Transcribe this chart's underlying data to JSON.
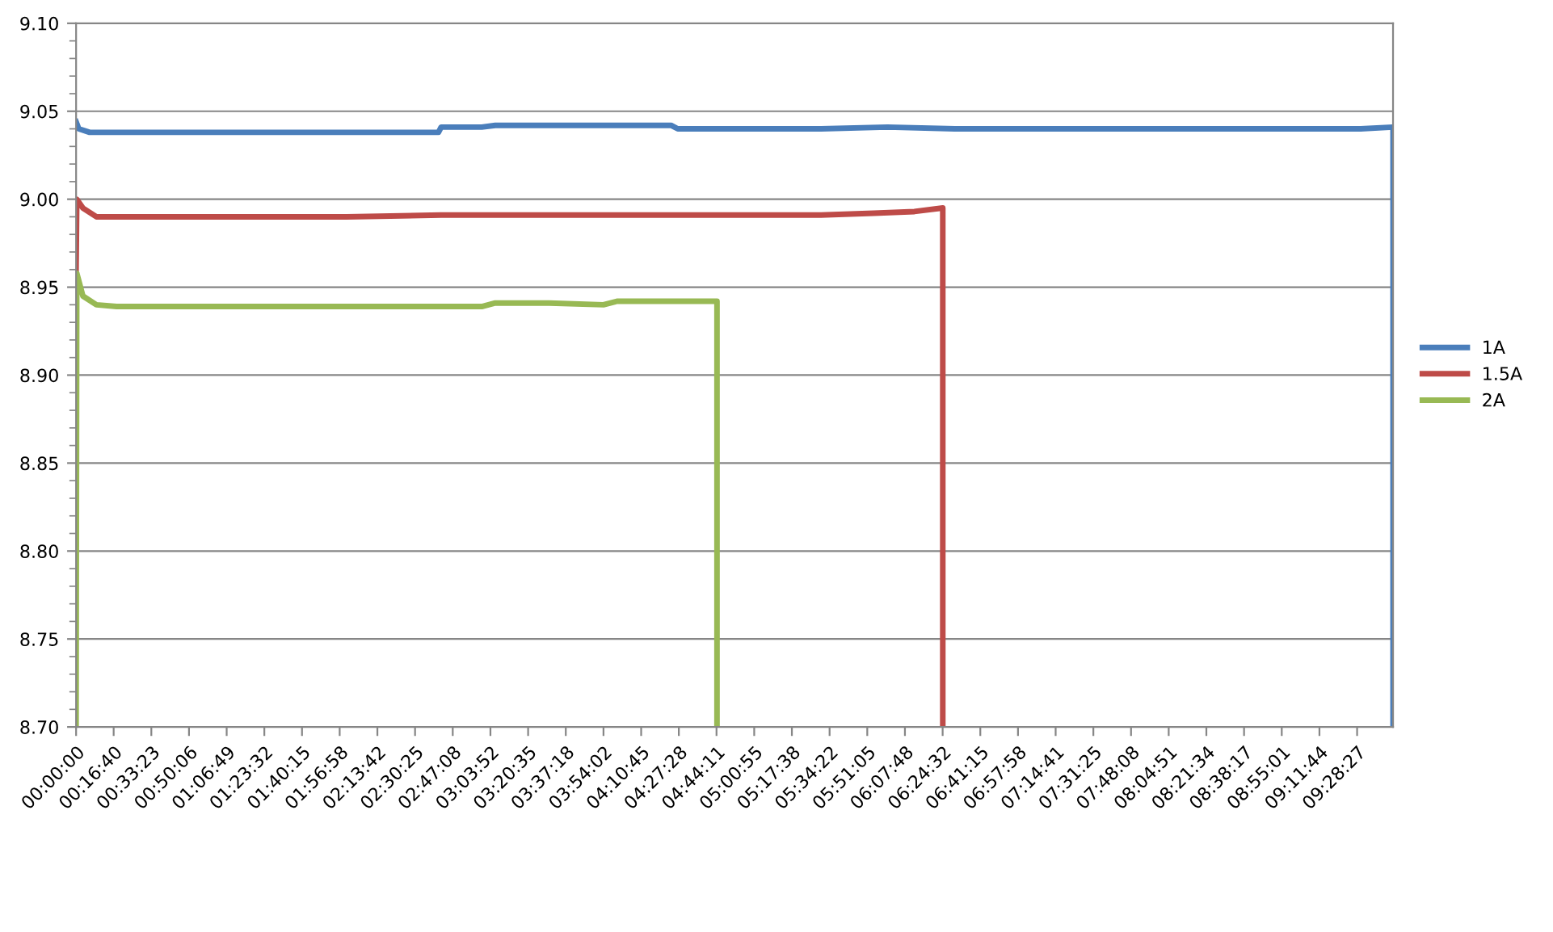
{
  "chart_data": {
    "type": "line",
    "xlim": [
      0,
      9.74
    ],
    "ylim": [
      8.7,
      9.1
    ],
    "yticks": [
      {
        "value": 8.7,
        "label": "8.70"
      },
      {
        "value": 8.75,
        "label": "8.75"
      },
      {
        "value": 8.8,
        "label": "8.80"
      },
      {
        "value": 8.85,
        "label": "8.85"
      },
      {
        "value": 8.9,
        "label": "8.90"
      },
      {
        "value": 8.95,
        "label": "8.95"
      },
      {
        "value": 9.0,
        "label": "9.00"
      },
      {
        "value": 9.05,
        "label": "9.05"
      },
      {
        "value": 9.1,
        "label": "9.10"
      }
    ],
    "xticks": [
      {
        "value": 0,
        "label": "00:00:00"
      },
      {
        "value": 0.2778,
        "label": "00:16:40"
      },
      {
        "value": 0.5564,
        "label": "00:33:23"
      },
      {
        "value": 0.835,
        "label": "00:50:06"
      },
      {
        "value": 1.1136,
        "label": "01:06:49"
      },
      {
        "value": 1.3922,
        "label": "01:23:32"
      },
      {
        "value": 1.6708,
        "label": "01:40:15"
      },
      {
        "value": 1.9494,
        "label": "01:56:58"
      },
      {
        "value": 2.2283,
        "label": "02:13:42"
      },
      {
        "value": 2.5069,
        "label": "02:30:25"
      },
      {
        "value": 2.7856,
        "label": "02:47:08"
      },
      {
        "value": 3.0644,
        "label": "03:03:52"
      },
      {
        "value": 3.3431,
        "label": "03:20:35"
      },
      {
        "value": 3.6217,
        "label": "03:37:18"
      },
      {
        "value": 3.9006,
        "label": "03:54:02"
      },
      {
        "value": 4.1792,
        "label": "04:10:45"
      },
      {
        "value": 4.4578,
        "label": "04:27:28"
      },
      {
        "value": 4.7364,
        "label": "04:44:11"
      },
      {
        "value": 5.0153,
        "label": "05:00:55"
      },
      {
        "value": 5.2939,
        "label": "05:17:38"
      },
      {
        "value": 5.5728,
        "label": "05:34:22"
      },
      {
        "value": 5.8514,
        "label": "05:51:05"
      },
      {
        "value": 6.13,
        "label": "06:07:48"
      },
      {
        "value": 6.4089,
        "label": "06:24:32"
      },
      {
        "value": 6.6875,
        "label": "06:41:15"
      },
      {
        "value": 6.9661,
        "label": "06:57:58"
      },
      {
        "value": 7.2447,
        "label": "07:14:41"
      },
      {
        "value": 7.5236,
        "label": "07:31:25"
      },
      {
        "value": 7.8022,
        "label": "07:48:08"
      },
      {
        "value": 8.0808,
        "label": "08:04:51"
      },
      {
        "value": 8.3594,
        "label": "08:21:34"
      },
      {
        "value": 8.6381,
        "label": "08:38:17"
      },
      {
        "value": 8.9169,
        "label": "08:55:01"
      },
      {
        "value": 9.1956,
        "label": "09:11:44"
      },
      {
        "value": 9.4742,
        "label": "09:28:27"
      }
    ],
    "grid": "y",
    "legend": "right",
    "marker": "none",
    "line_style": "solid",
    "series": [
      {
        "name": "1A",
        "color": "#4a7ebb",
        "x": [
          0,
          0.02,
          0.1,
          0.5,
          1.0,
          1.5,
          2.0,
          2.68,
          2.7,
          3.0,
          3.1,
          3.5,
          4.0,
          4.4,
          4.45,
          5.0,
          5.5,
          6.0,
          6.5,
          7.0,
          7.5,
          8.0,
          8.5,
          9.0,
          9.5,
          9.74,
          9.74
        ],
        "values": [
          9.044,
          9.04,
          9.038,
          9.038,
          9.038,
          9.038,
          9.038,
          9.038,
          9.041,
          9.041,
          9.042,
          9.042,
          9.042,
          9.042,
          9.04,
          9.04,
          9.04,
          9.041,
          9.04,
          9.04,
          9.04,
          9.04,
          9.04,
          9.04,
          9.04,
          9.041,
          8.7
        ]
      },
      {
        "name": "1.5A",
        "color": "#be4b48",
        "x": [
          0,
          0.005,
          0.05,
          0.15,
          0.5,
          1.0,
          1.5,
          2.0,
          2.7,
          3.5,
          4.5,
          5.5,
          5.9,
          6.2,
          6.41,
          6.41
        ],
        "values": [
          8.96,
          9.0,
          8.995,
          8.99,
          8.99,
          8.99,
          8.99,
          8.99,
          8.991,
          8.991,
          8.991,
          8.991,
          8.992,
          8.993,
          8.995,
          8.7
        ]
      },
      {
        "name": "2A",
        "color": "#98b954",
        "x": [
          0,
          0.005,
          0.05,
          0.15,
          0.3,
          1.0,
          2.0,
          3.0,
          3.1,
          3.5,
          3.9,
          4.0,
          4.4,
          4.74,
          4.74
        ],
        "values": [
          8.7,
          8.958,
          8.945,
          8.94,
          8.939,
          8.939,
          8.939,
          8.939,
          8.941,
          8.941,
          8.94,
          8.942,
          8.942,
          8.942,
          8.7
        ]
      }
    ]
  }
}
